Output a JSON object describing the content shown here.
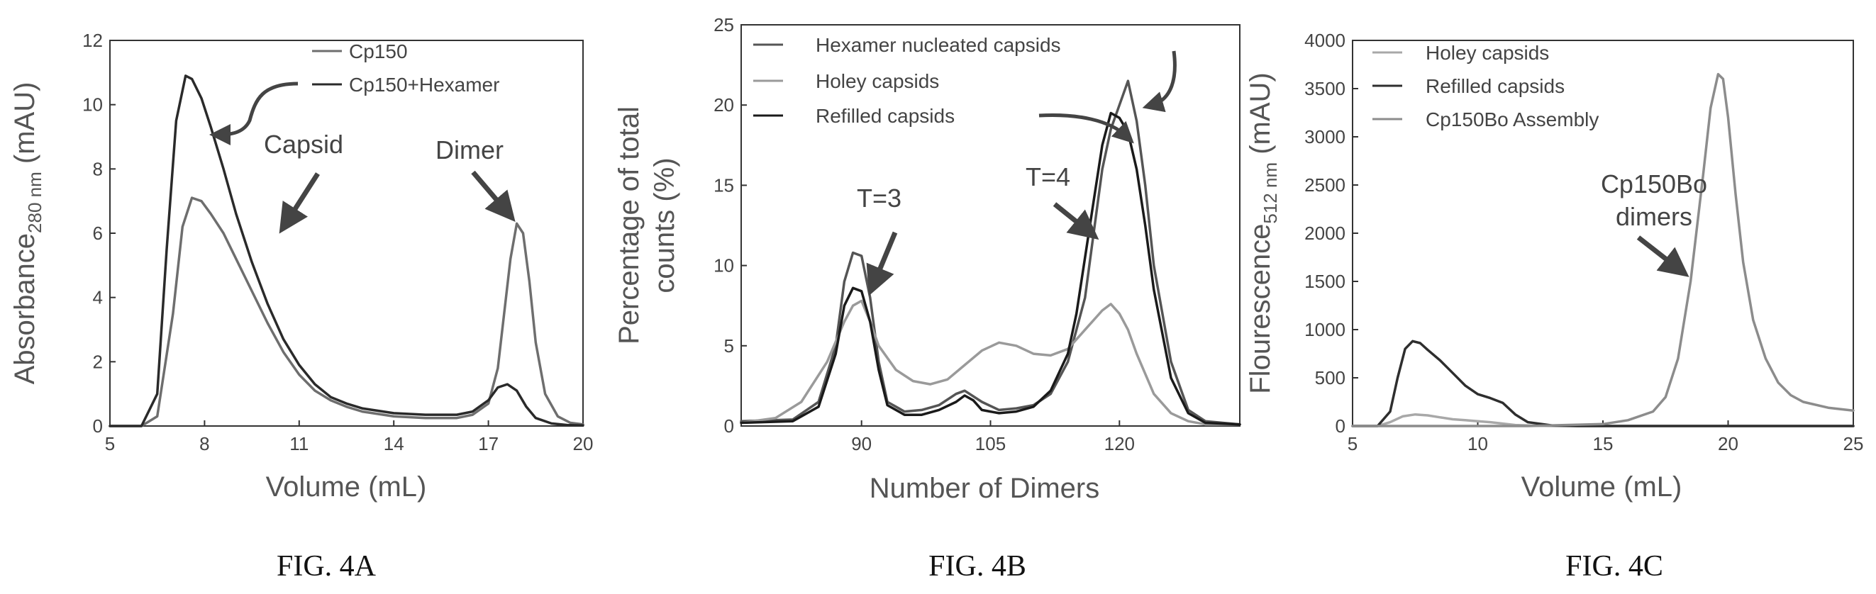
{
  "chart_data": [
    {
      "type": "line",
      "caption": "FIG. 4A",
      "xlabel": "Volume (mL)",
      "ylabel": "Absorbance",
      "ylabel_sub": "280 nm",
      "ylabel_unit": " (mAU)",
      "xlim": [
        5,
        20
      ],
      "ylim": [
        0,
        12
      ],
      "xticks": [
        "5",
        "8",
        "11",
        "14",
        "17",
        "20"
      ],
      "yticks": [
        "0",
        "2",
        "4",
        "6",
        "8",
        "10",
        "12"
      ],
      "series": [
        {
          "name": "Cp150",
          "color": "#6e6e6e",
          "x": [
            5.0,
            6.0,
            6.5,
            7.0,
            7.3,
            7.6,
            7.9,
            8.2,
            8.6,
            9.0,
            9.5,
            10.0,
            10.5,
            11.0,
            11.5,
            12.0,
            12.5,
            13.0,
            14.0,
            15.0,
            16.0,
            16.5,
            17.0,
            17.3,
            17.5,
            17.7,
            17.9,
            18.1,
            18.3,
            18.5,
            18.8,
            19.2,
            19.6,
            20.0
          ],
          "y": [
            0,
            0,
            0.3,
            3.5,
            6.2,
            7.1,
            7.0,
            6.6,
            6.0,
            5.2,
            4.2,
            3.2,
            2.3,
            1.6,
            1.1,
            0.8,
            0.6,
            0.45,
            0.3,
            0.25,
            0.25,
            0.35,
            0.7,
            1.8,
            3.5,
            5.2,
            6.3,
            6.0,
            4.5,
            2.6,
            1.0,
            0.3,
            0.1,
            0.05
          ]
        },
        {
          "name": "Cp150+Hexamer",
          "color": "#2a2a2a",
          "x": [
            5.0,
            6.0,
            6.5,
            6.8,
            7.1,
            7.4,
            7.6,
            7.9,
            8.2,
            8.6,
            9.0,
            9.5,
            10.0,
            10.5,
            11.0,
            11.5,
            12.0,
            12.5,
            13.0,
            14.0,
            15.0,
            16.0,
            16.5,
            17.0,
            17.3,
            17.6,
            17.9,
            18.2,
            18.5,
            19.0,
            19.5,
            20.0
          ],
          "y": [
            0,
            0,
            1.0,
            5.5,
            9.5,
            10.9,
            10.8,
            10.2,
            9.3,
            8.0,
            6.6,
            5.1,
            3.8,
            2.7,
            1.9,
            1.3,
            0.9,
            0.7,
            0.55,
            0.4,
            0.35,
            0.35,
            0.45,
            0.8,
            1.2,
            1.3,
            1.1,
            0.6,
            0.25,
            0.08,
            0.03,
            0.02
          ]
        }
      ],
      "legend": [
        "Cp150",
        "Cp150+Hexamer"
      ],
      "annotations": [
        "Capsid",
        "Dimer"
      ]
    },
    {
      "type": "line",
      "caption": "FIG. 4B",
      "xlabel": "Number of Dimers",
      "ylabel_line1": "Percentage of total",
      "ylabel_line2": "counts (%)",
      "xlim": [
        76,
        134
      ],
      "ylim": [
        0,
        25
      ],
      "xticks": [
        "90",
        "105",
        "120"
      ],
      "xtick_values": [
        90,
        105,
        120
      ],
      "yticks": [
        "0",
        "5",
        "10",
        "15",
        "20",
        "25"
      ],
      "series": [
        {
          "name": "Hexamer nucleated capsids",
          "color": "#555555",
          "x": [
            76,
            82,
            85,
            87,
            88,
            89,
            90,
            91,
            92,
            93,
            95,
            97,
            99,
            101,
            102,
            104,
            106,
            108,
            110,
            112,
            114,
            116,
            117,
            118,
            119,
            120,
            121,
            122,
            123,
            124,
            126,
            128,
            130,
            134
          ],
          "y": [
            0.3,
            0.4,
            1.5,
            5.0,
            9.0,
            10.8,
            10.6,
            8.0,
            4.0,
            1.5,
            0.9,
            1.0,
            1.3,
            2.0,
            2.2,
            1.5,
            1.0,
            1.1,
            1.3,
            2.0,
            4.0,
            8.0,
            12.0,
            16.0,
            18.5,
            20.0,
            21.5,
            19.0,
            15.0,
            10.0,
            4.0,
            1.0,
            0.3,
            0.1
          ]
        },
        {
          "name": "Holey capsids",
          "color": "#9a9a9a",
          "x": [
            76,
            80,
            83,
            86,
            88,
            89,
            90,
            91,
            92,
            94,
            96,
            98,
            100,
            102,
            104,
            106,
            108,
            110,
            112,
            114,
            116,
            118,
            119,
            120,
            121,
            122,
            124,
            126,
            128,
            130,
            134
          ],
          "y": [
            0.2,
            0.5,
            1.5,
            4.0,
            6.5,
            7.5,
            7.8,
            6.5,
            5.0,
            3.5,
            2.8,
            2.6,
            2.9,
            3.8,
            4.7,
            5.2,
            5.0,
            4.5,
            4.4,
            4.8,
            6.0,
            7.2,
            7.6,
            7.0,
            6.0,
            4.5,
            2.0,
            0.8,
            0.3,
            0.1,
            0.1
          ]
        },
        {
          "name": "Refilled capsids",
          "color": "#1a1a1a",
          "x": [
            76,
            82,
            85,
            87,
            88,
            89,
            90,
            91,
            92,
            93,
            95,
            97,
            99,
            101,
            102,
            103,
            104,
            106,
            108,
            110,
            112,
            114,
            115,
            116,
            117,
            118,
            119,
            120,
            121,
            122,
            123,
            124,
            126,
            128,
            130,
            134
          ],
          "y": [
            0.2,
            0.3,
            1.2,
            4.5,
            7.5,
            8.6,
            8.4,
            6.5,
            3.5,
            1.3,
            0.7,
            0.7,
            1.0,
            1.5,
            1.9,
            1.6,
            1.0,
            0.8,
            0.9,
            1.2,
            2.2,
            4.5,
            7.0,
            10.5,
            14.0,
            17.5,
            19.5,
            19.2,
            18.3,
            16.0,
            12.5,
            8.5,
            3.0,
            0.8,
            0.2,
            0.1
          ]
        }
      ],
      "legend": [
        "Hexamer nucleated capsids",
        "Holey capsids",
        "Refilled capsids"
      ],
      "annotations": [
        "T=3",
        "T=4"
      ]
    },
    {
      "type": "line",
      "caption": "FIG. 4C",
      "xlabel": "Volume (mL)",
      "ylabel": "Flourescence",
      "ylabel_sub": "512 nm",
      "ylabel_unit": " (mAU)",
      "xlim": [
        5,
        25
      ],
      "ylim": [
        0,
        4000
      ],
      "xticks": [
        "5",
        "10",
        "15",
        "20",
        "25"
      ],
      "yticks": [
        "0",
        "500",
        "1000",
        "1500",
        "2000",
        "2500",
        "3000",
        "3500",
        "4000"
      ],
      "series": [
        {
          "name": "Holey capsids",
          "color": "#a8a8a8",
          "x": [
            5.0,
            6.0,
            6.5,
            7.0,
            7.5,
            8.0,
            8.5,
            9.0,
            9.5,
            10.0,
            10.5,
            11.0,
            11.5,
            12.0,
            13.0,
            14.0,
            25.0
          ],
          "y": [
            0,
            0,
            40,
            100,
            120,
            110,
            90,
            70,
            60,
            50,
            40,
            25,
            10,
            5,
            0,
            0,
            0
          ]
        },
        {
          "name": "Refilled capsids",
          "color": "#2e2e2e",
          "x": [
            5.0,
            6.0,
            6.5,
            6.8,
            7.1,
            7.4,
            7.7,
            8.0,
            8.5,
            9.0,
            9.5,
            10.0,
            10.5,
            11.0,
            11.5,
            12.0,
            13.0,
            14.0,
            15.0,
            25.0
          ],
          "y": [
            0,
            0,
            150,
            500,
            800,
            880,
            860,
            790,
            680,
            550,
            420,
            330,
            290,
            240,
            120,
            40,
            5,
            0,
            0,
            0
          ]
        },
        {
          "name": "Cp150Bo Assembly",
          "color": "#8c8c8c",
          "x": [
            5.0,
            8.0,
            12.0,
            15.0,
            16.0,
            17.0,
            17.5,
            18.0,
            18.5,
            19.0,
            19.3,
            19.6,
            19.8,
            20.0,
            20.3,
            20.6,
            21.0,
            21.5,
            22.0,
            22.5,
            23.0,
            24.0,
            25.0
          ],
          "y": [
            0,
            0,
            0,
            20,
            60,
            150,
            300,
            700,
            1500,
            2600,
            3300,
            3650,
            3600,
            3200,
            2400,
            1700,
            1100,
            700,
            450,
            320,
            250,
            190,
            160
          ]
        }
      ],
      "legend": [
        "Holey capsids",
        "Refilled capsids",
        "Cp150Bo Assembly"
      ],
      "annotation_line1": "Cp150Bo",
      "annotation_line2": "dimers"
    }
  ]
}
